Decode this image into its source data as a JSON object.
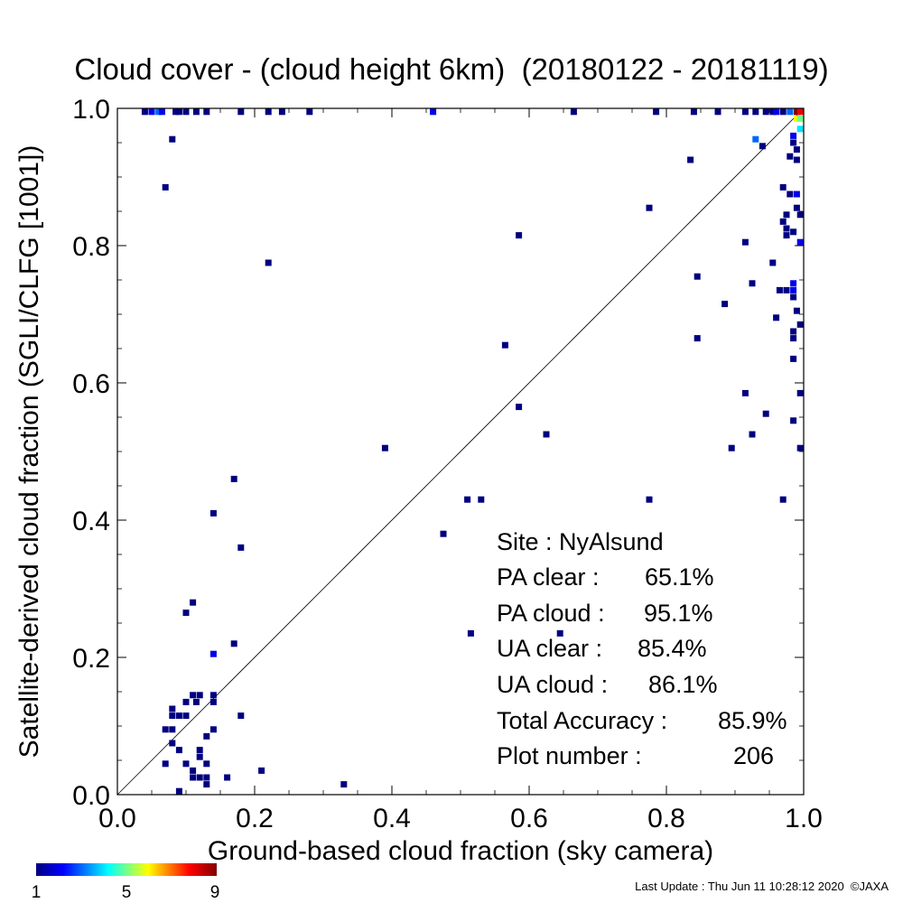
{
  "chart_data": {
    "type": "heatmap",
    "title": "Cloud cover - (cloud height 6km)  (20180122 - 20181119)",
    "xlabel": "Ground-based cloud fraction (sky camera)",
    "ylabel": "Satellite-derived cloud fraction (SGLI/CLFG [1001])",
    "xlim": [
      0.0,
      1.0
    ],
    "ylim": [
      0.0,
      1.0
    ],
    "x_ticks": [
      "0.0",
      "0.2",
      "0.4",
      "0.6",
      "0.8",
      "1.0"
    ],
    "y_ticks": [
      "0.0",
      "0.2",
      "0.4",
      "0.6",
      "0.8",
      "1.0"
    ],
    "reference_line": "1:1 diagonal",
    "grid": false,
    "colorbar": {
      "ticks": [
        "1",
        "5",
        "9"
      ],
      "min": 1,
      "max": 9,
      "colors": [
        "#000080",
        "#0000ff",
        "#00ffff",
        "#ffff00",
        "#ff0000",
        "#800000"
      ]
    },
    "stats": [
      {
        "label": "Site : NyAlsund",
        "value": ""
      },
      {
        "label": "PA clear :",
        "value": "65.1%"
      },
      {
        "label": "PA cloud :",
        "value": "95.1%"
      },
      {
        "label": "UA clear :",
        "value": "85.4%"
      },
      {
        "label": "UA cloud :",
        "value": "86.1%"
      },
      {
        "label": "Total Accuracy :",
        "value": "85.9%"
      },
      {
        "label": "Plot number :",
        "value": "206"
      }
    ],
    "footer": "Last Update : Thu Jun 11 10:28:12 2020  ©JAXA",
    "points": [
      {
        "x": 0.04,
        "y": 0.995,
        "count": 1
      },
      {
        "x": 0.05,
        "y": 0.995,
        "count": 2
      },
      {
        "x": 0.06,
        "y": 0.995,
        "count": 3
      },
      {
        "x": 0.065,
        "y": 0.995,
        "count": 2
      },
      {
        "x": 0.085,
        "y": 0.995,
        "count": 1
      },
      {
        "x": 0.09,
        "y": 0.995,
        "count": 1
      },
      {
        "x": 0.1,
        "y": 0.995,
        "count": 1
      },
      {
        "x": 0.115,
        "y": 0.995,
        "count": 1
      },
      {
        "x": 0.13,
        "y": 0.995,
        "count": 1
      },
      {
        "x": 0.18,
        "y": 0.995,
        "count": 1
      },
      {
        "x": 0.22,
        "y": 0.995,
        "count": 1
      },
      {
        "x": 0.24,
        "y": 0.995,
        "count": 1
      },
      {
        "x": 0.28,
        "y": 0.995,
        "count": 1
      },
      {
        "x": 0.46,
        "y": 0.995,
        "count": 2
      },
      {
        "x": 0.665,
        "y": 0.995,
        "count": 1
      },
      {
        "x": 0.785,
        "y": 0.995,
        "count": 1
      },
      {
        "x": 0.84,
        "y": 0.995,
        "count": 1
      },
      {
        "x": 0.875,
        "y": 0.995,
        "count": 1
      },
      {
        "x": 0.915,
        "y": 0.995,
        "count": 1
      },
      {
        "x": 0.93,
        "y": 0.995,
        "count": 1
      },
      {
        "x": 0.945,
        "y": 0.995,
        "count": 1
      },
      {
        "x": 0.955,
        "y": 0.995,
        "count": 1
      },
      {
        "x": 0.96,
        "y": 0.995,
        "count": 2
      },
      {
        "x": 0.97,
        "y": 0.995,
        "count": 1
      },
      {
        "x": 0.98,
        "y": 0.995,
        "count": 3
      },
      {
        "x": 0.99,
        "y": 0.995,
        "count": 9
      },
      {
        "x": 0.995,
        "y": 0.995,
        "count": 8
      },
      {
        "x": 0.99,
        "y": 0.985,
        "count": 6
      },
      {
        "x": 0.995,
        "y": 0.985,
        "count": 5
      },
      {
        "x": 0.995,
        "y": 0.97,
        "count": 4
      },
      {
        "x": 0.985,
        "y": 0.96,
        "count": 2
      },
      {
        "x": 0.93,
        "y": 0.955,
        "count": 3
      },
      {
        "x": 0.94,
        "y": 0.945,
        "count": 1
      },
      {
        "x": 0.985,
        "y": 0.95,
        "count": 1
      },
      {
        "x": 0.99,
        "y": 0.94,
        "count": 1
      },
      {
        "x": 0.98,
        "y": 0.93,
        "count": 1
      },
      {
        "x": 0.99,
        "y": 0.925,
        "count": 1
      },
      {
        "x": 0.835,
        "y": 0.925,
        "count": 1
      },
      {
        "x": 0.08,
        "y": 0.955,
        "count": 1
      },
      {
        "x": 0.07,
        "y": 0.885,
        "count": 1
      },
      {
        "x": 0.97,
        "y": 0.885,
        "count": 1
      },
      {
        "x": 0.98,
        "y": 0.875,
        "count": 1
      },
      {
        "x": 0.99,
        "y": 0.875,
        "count": 2
      },
      {
        "x": 0.775,
        "y": 0.855,
        "count": 1
      },
      {
        "x": 0.99,
        "y": 0.855,
        "count": 1
      },
      {
        "x": 0.975,
        "y": 0.845,
        "count": 1
      },
      {
        "x": 0.995,
        "y": 0.845,
        "count": 1
      },
      {
        "x": 0.97,
        "y": 0.835,
        "count": 1
      },
      {
        "x": 0.975,
        "y": 0.825,
        "count": 1
      },
      {
        "x": 0.985,
        "y": 0.82,
        "count": 1
      },
      {
        "x": 0.975,
        "y": 0.815,
        "count": 1
      },
      {
        "x": 0.585,
        "y": 0.815,
        "count": 1
      },
      {
        "x": 0.995,
        "y": 0.805,
        "count": 2
      },
      {
        "x": 0.915,
        "y": 0.805,
        "count": 1
      },
      {
        "x": 0.22,
        "y": 0.775,
        "count": 1
      },
      {
        "x": 0.955,
        "y": 0.775,
        "count": 1
      },
      {
        "x": 0.845,
        "y": 0.755,
        "count": 1
      },
      {
        "x": 0.925,
        "y": 0.745,
        "count": 1
      },
      {
        "x": 0.985,
        "y": 0.745,
        "count": 2
      },
      {
        "x": 0.965,
        "y": 0.735,
        "count": 1
      },
      {
        "x": 0.975,
        "y": 0.735,
        "count": 1
      },
      {
        "x": 0.985,
        "y": 0.735,
        "count": 2
      },
      {
        "x": 0.985,
        "y": 0.725,
        "count": 1
      },
      {
        "x": 0.885,
        "y": 0.715,
        "count": 1
      },
      {
        "x": 0.99,
        "y": 0.705,
        "count": 1
      },
      {
        "x": 0.96,
        "y": 0.695,
        "count": 1
      },
      {
        "x": 0.995,
        "y": 0.685,
        "count": 1
      },
      {
        "x": 0.985,
        "y": 0.675,
        "count": 1
      },
      {
        "x": 0.985,
        "y": 0.665,
        "count": 1
      },
      {
        "x": 0.845,
        "y": 0.665,
        "count": 1
      },
      {
        "x": 0.565,
        "y": 0.655,
        "count": 1
      },
      {
        "x": 0.985,
        "y": 0.635,
        "count": 1
      },
      {
        "x": 0.915,
        "y": 0.585,
        "count": 1
      },
      {
        "x": 0.995,
        "y": 0.585,
        "count": 1
      },
      {
        "x": 0.585,
        "y": 0.565,
        "count": 1
      },
      {
        "x": 0.945,
        "y": 0.555,
        "count": 1
      },
      {
        "x": 0.985,
        "y": 0.545,
        "count": 1
      },
      {
        "x": 0.625,
        "y": 0.525,
        "count": 1
      },
      {
        "x": 0.925,
        "y": 0.525,
        "count": 1
      },
      {
        "x": 0.39,
        "y": 0.505,
        "count": 1
      },
      {
        "x": 0.895,
        "y": 0.505,
        "count": 1
      },
      {
        "x": 0.995,
        "y": 0.505,
        "count": 1
      },
      {
        "x": 0.17,
        "y": 0.46,
        "count": 1
      },
      {
        "x": 0.51,
        "y": 0.43,
        "count": 1
      },
      {
        "x": 0.53,
        "y": 0.43,
        "count": 1
      },
      {
        "x": 0.775,
        "y": 0.43,
        "count": 1
      },
      {
        "x": 0.97,
        "y": 0.43,
        "count": 1
      },
      {
        "x": 0.14,
        "y": 0.41,
        "count": 1
      },
      {
        "x": 0.475,
        "y": 0.38,
        "count": 1
      },
      {
        "x": 0.18,
        "y": 0.36,
        "count": 1
      },
      {
        "x": 0.11,
        "y": 0.28,
        "count": 1
      },
      {
        "x": 0.1,
        "y": 0.265,
        "count": 1
      },
      {
        "x": 0.515,
        "y": 0.235,
        "count": 1
      },
      {
        "x": 0.645,
        "y": 0.235,
        "count": 1
      },
      {
        "x": 0.17,
        "y": 0.22,
        "count": 1
      },
      {
        "x": 0.14,
        "y": 0.205,
        "count": 2
      },
      {
        "x": 0.11,
        "y": 0.145,
        "count": 1
      },
      {
        "x": 0.12,
        "y": 0.145,
        "count": 1
      },
      {
        "x": 0.14,
        "y": 0.145,
        "count": 1
      },
      {
        "x": 0.1,
        "y": 0.135,
        "count": 1
      },
      {
        "x": 0.115,
        "y": 0.135,
        "count": 1
      },
      {
        "x": 0.14,
        "y": 0.135,
        "count": 1
      },
      {
        "x": 0.08,
        "y": 0.125,
        "count": 1
      },
      {
        "x": 0.08,
        "y": 0.115,
        "count": 1
      },
      {
        "x": 0.09,
        "y": 0.115,
        "count": 1
      },
      {
        "x": 0.1,
        "y": 0.115,
        "count": 1
      },
      {
        "x": 0.18,
        "y": 0.115,
        "count": 1
      },
      {
        "x": 0.07,
        "y": 0.095,
        "count": 1
      },
      {
        "x": 0.08,
        "y": 0.095,
        "count": 1
      },
      {
        "x": 0.14,
        "y": 0.095,
        "count": 1
      },
      {
        "x": 0.13,
        "y": 0.085,
        "count": 1
      },
      {
        "x": 0.08,
        "y": 0.075,
        "count": 1
      },
      {
        "x": 0.09,
        "y": 0.065,
        "count": 1
      },
      {
        "x": 0.12,
        "y": 0.065,
        "count": 1
      },
      {
        "x": 0.12,
        "y": 0.055,
        "count": 1
      },
      {
        "x": 0.1,
        "y": 0.045,
        "count": 1
      },
      {
        "x": 0.07,
        "y": 0.045,
        "count": 1
      },
      {
        "x": 0.13,
        "y": 0.045,
        "count": 1
      },
      {
        "x": 0.11,
        "y": 0.035,
        "count": 1
      },
      {
        "x": 0.21,
        "y": 0.035,
        "count": 1
      },
      {
        "x": 0.11,
        "y": 0.025,
        "count": 1
      },
      {
        "x": 0.12,
        "y": 0.025,
        "count": 1
      },
      {
        "x": 0.13,
        "y": 0.025,
        "count": 1
      },
      {
        "x": 0.16,
        "y": 0.025,
        "count": 1
      },
      {
        "x": 0.13,
        "y": 0.015,
        "count": 1
      },
      {
        "x": 0.33,
        "y": 0.015,
        "count": 1
      },
      {
        "x": 0.09,
        "y": 0.005,
        "count": 1
      }
    ]
  }
}
